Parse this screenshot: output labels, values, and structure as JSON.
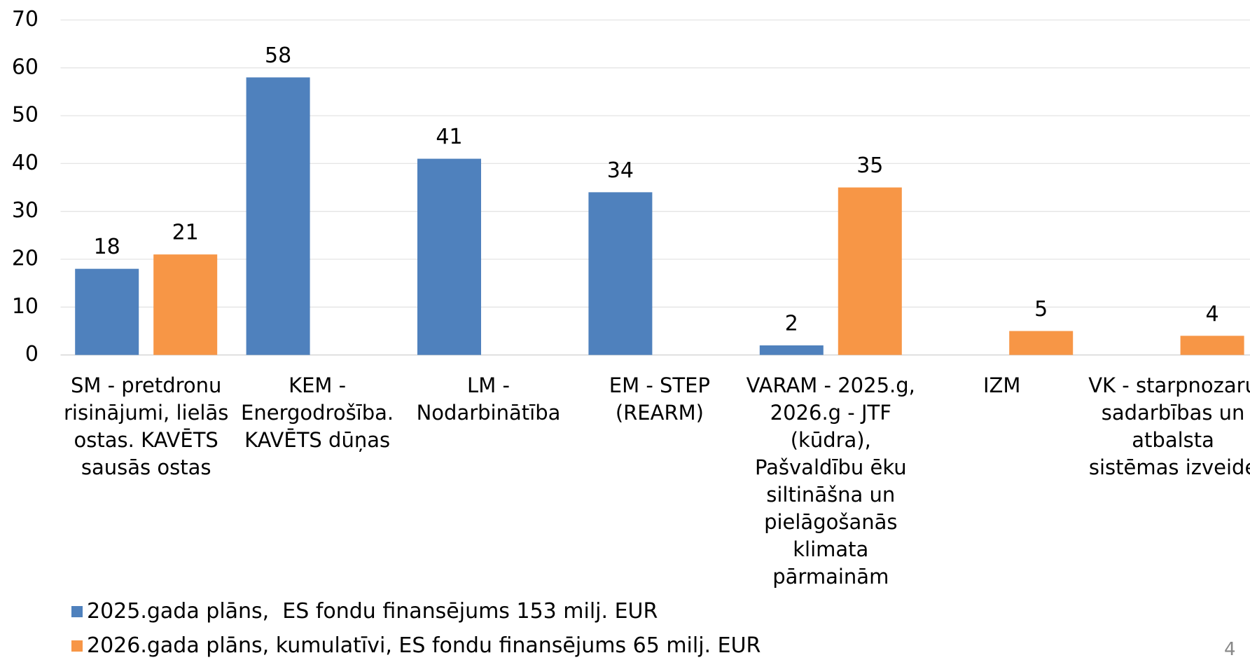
{
  "chart_data": {
    "type": "bar",
    "categories": [
      "SM - pretdronu risinājumi, lielās ostas. KAVĒTS sausās ostas",
      "KEM - Energodrošība. KAVĒTS dūņas",
      "LM - Nodarbinātība",
      "EM - STEP (REARM)",
      "VARAM - 2025.g, 2026.g - JTF (kūdra), Pašvaldību ēku siltināšna un pielāgošanās klimata pārmainām",
      "IZM",
      "VK - starpnozaru sadarbības un atbalsta sistēmas izveide"
    ],
    "series": [
      {
        "name": "2025.gada plāns,  ES fondu finansējums 153 milj. EUR",
        "color": "#4f81bd",
        "values": [
          18,
          58,
          41,
          34,
          2,
          null,
          null
        ]
      },
      {
        "name": "2026.gada plāns, kumulatīvi, ES fondu finansējums 65 milj. EUR",
        "color": "#f79646",
        "values": [
          21,
          null,
          null,
          null,
          35,
          5,
          4
        ]
      }
    ],
    "ylim": [
      0,
      70
    ],
    "yticks": [
      0,
      10,
      20,
      30,
      40,
      50,
      60,
      70
    ],
    "grid": true
  },
  "page_number": "4"
}
